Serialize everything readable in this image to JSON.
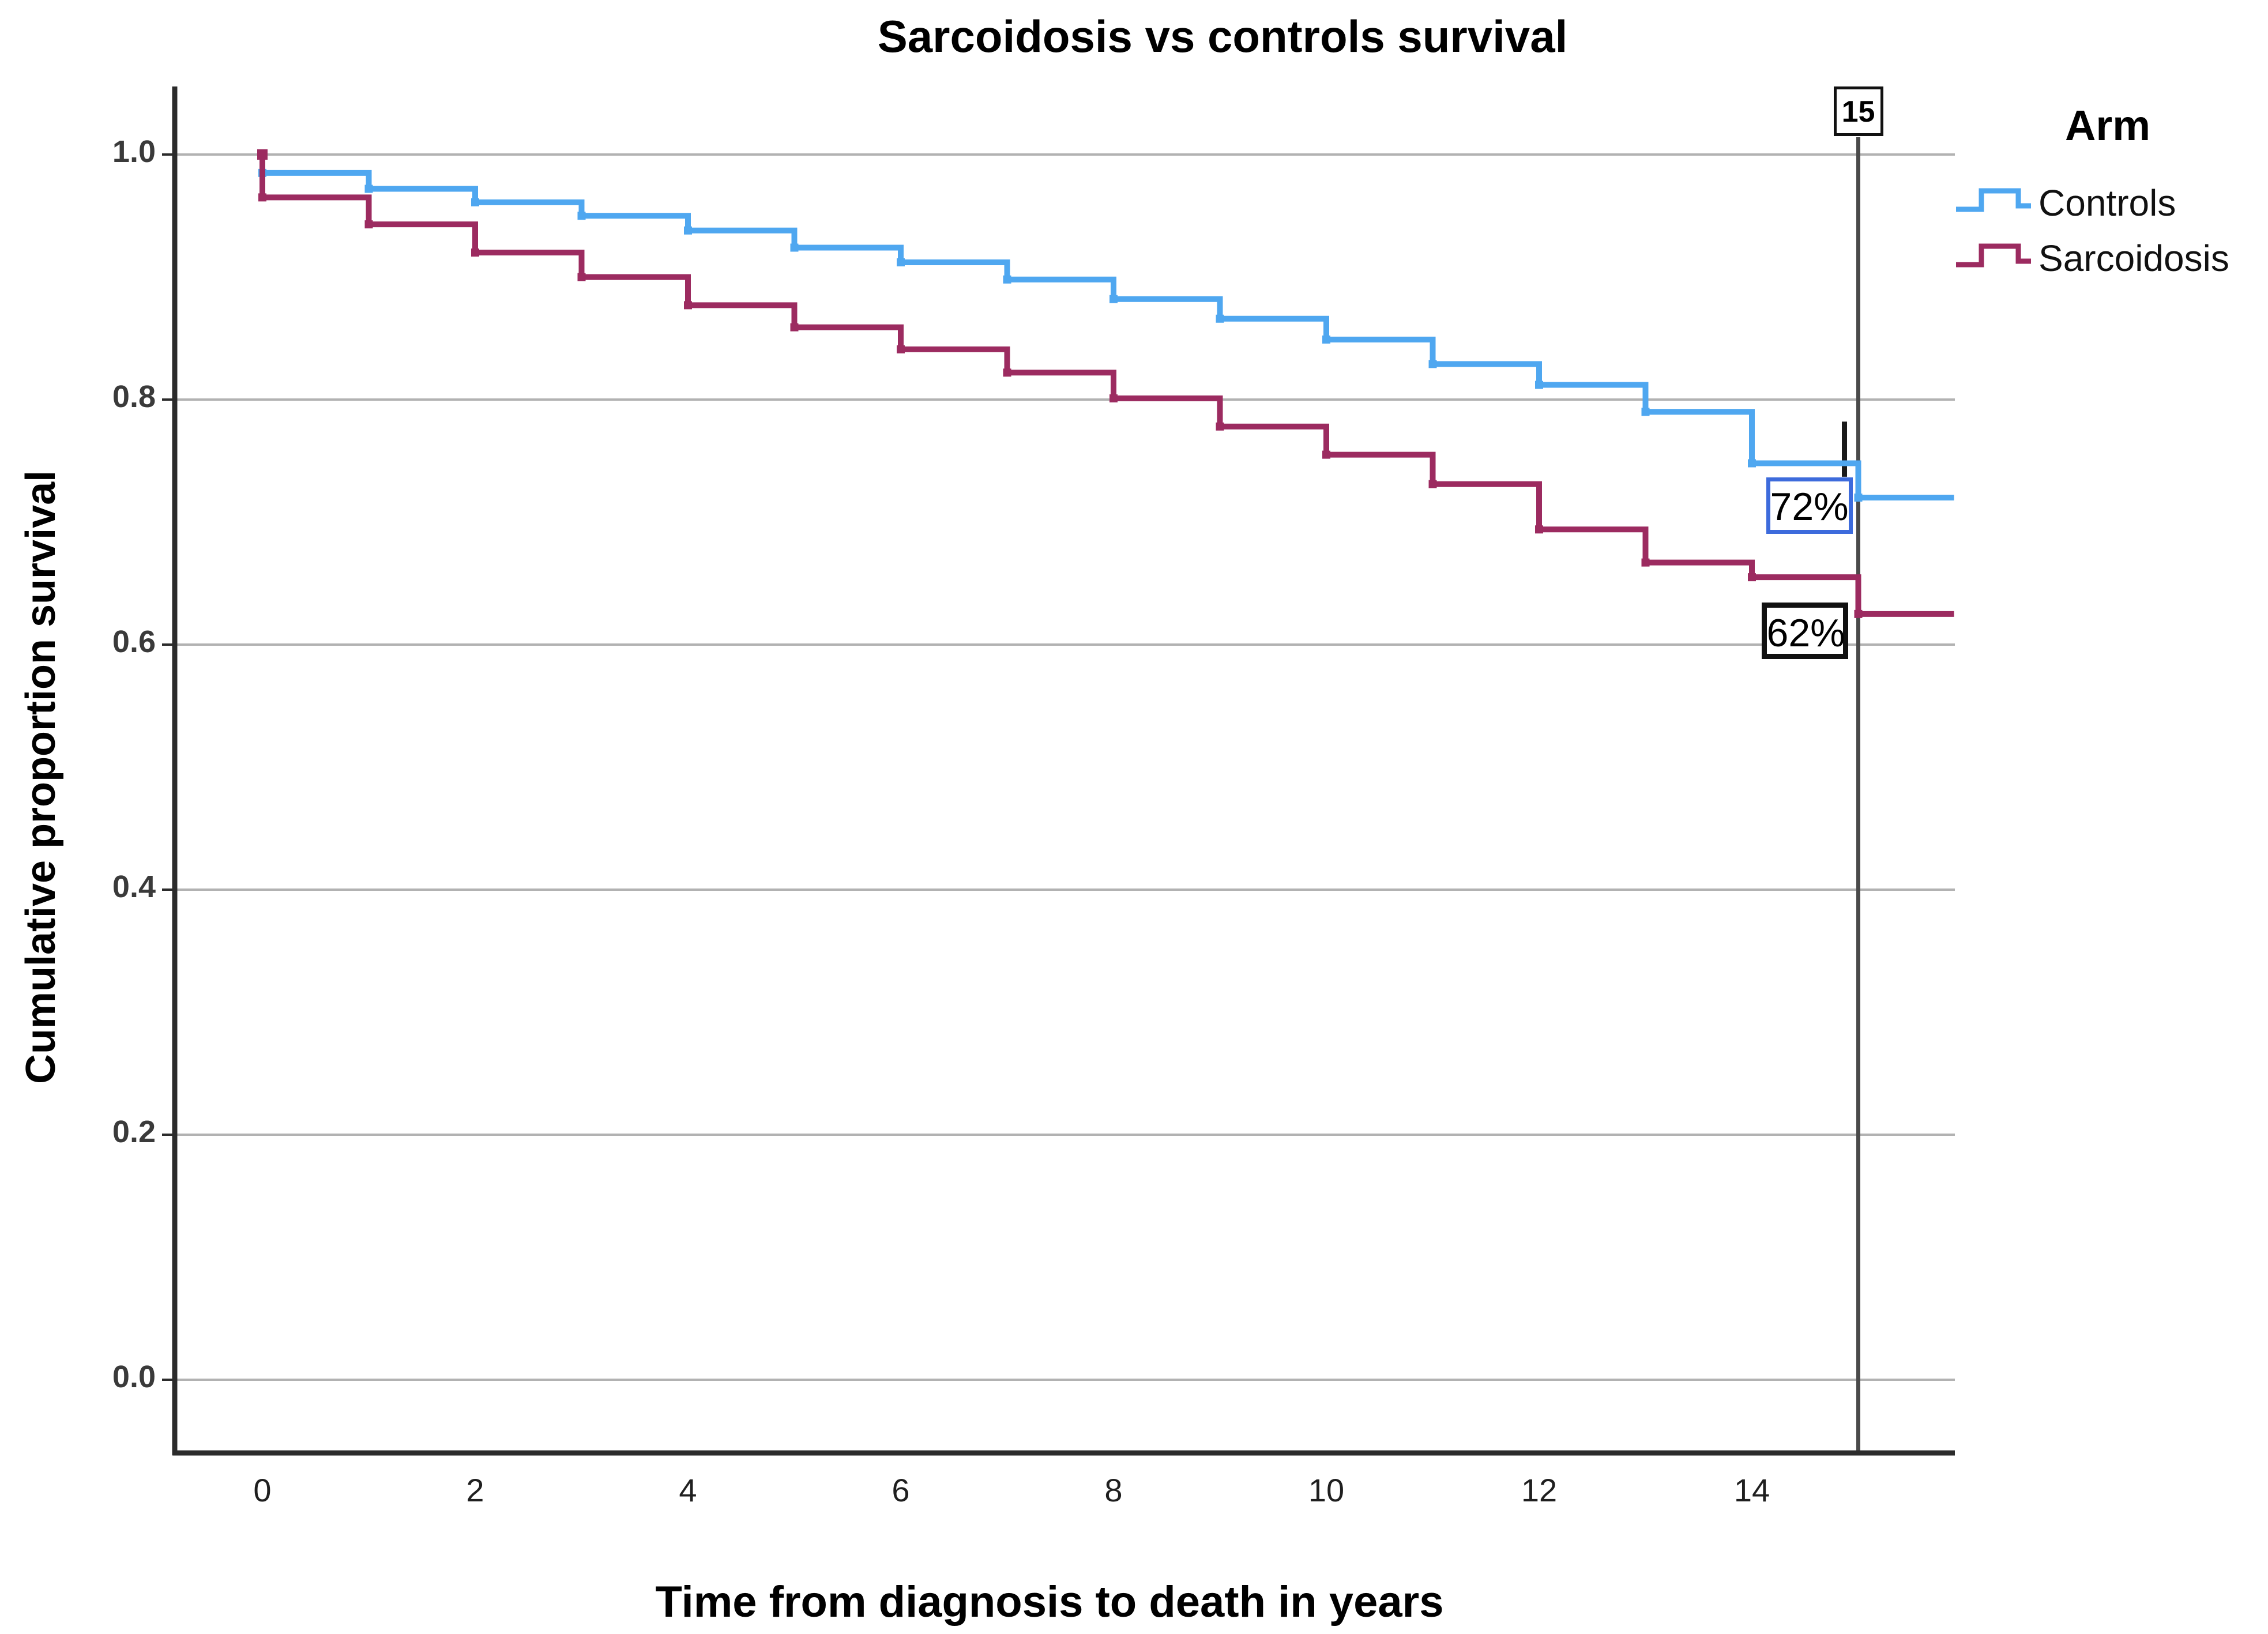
{
  "title": "Sarcoidosis vs controls survival",
  "axes": {
    "x": {
      "title": "Time from diagnosis to death in years",
      "tick_labels": [
        "0",
        "2",
        "4",
        "6",
        "8",
        "10",
        "12",
        "14"
      ],
      "tick_values": [
        0,
        2,
        4,
        6,
        8,
        10,
        12,
        14
      ]
    },
    "y": {
      "title": "Cumulative proportion survival",
      "tick_labels": [
        "1.0",
        "0.8",
        "0.6",
        "0.4",
        "0.2",
        "0.0"
      ],
      "tick_values": [
        1.0,
        0.8,
        0.6,
        0.4,
        0.2,
        0.0
      ]
    }
  },
  "legend": {
    "title": "Arm",
    "items": [
      {
        "label": "Controls",
        "color": "#4FA7F0"
      },
      {
        "label": "Sarcoidosis",
        "color": "#9C2B60"
      }
    ]
  },
  "annotations": {
    "reference_line": {
      "label": "15",
      "year": 15,
      "color": "#4a4a4a"
    },
    "percent_labels": [
      {
        "text": "72%",
        "series": "Controls",
        "border_color": "#3D6BDC"
      },
      {
        "text": "62%",
        "series": "Sarcoidosis",
        "border_color": "#111111"
      }
    ],
    "censor_tick": {
      "year": 14.87,
      "value_from": 0.737,
      "value_to": 0.782,
      "color": "#1a1a1a"
    }
  },
  "colors": {
    "gridline": "#b2b2b2",
    "axis": "#2b2b2b",
    "background": "#ffffff"
  },
  "chart_data": {
    "type": "line",
    "subtype": "step-kaplan-meier",
    "title": "Sarcoidosis vs controls survival",
    "xlabel": "Time from diagnosis to death in years",
    "ylabel": "Cumulative proportion survival",
    "xlim": [
      -0.82,
      15.9
    ],
    "ylim": [
      -0.06,
      1.05
    ],
    "grid": "horizontal-only",
    "legend_position": "right-top",
    "x_step_years": [
      0,
      1,
      2,
      3,
      4,
      5,
      6,
      7,
      8,
      9,
      10,
      11,
      12,
      13,
      14,
      15
    ],
    "series": [
      {
        "name": "Controls",
        "color": "#4FA7F0",
        "start_value": 1.0,
        "levels": [
          0.985,
          0.972,
          0.961,
          0.95,
          0.938,
          0.924,
          0.912,
          0.898,
          0.882,
          0.866,
          0.849,
          0.829,
          0.812,
          0.79,
          0.748,
          0.72
        ],
        "end_year": 15.9,
        "value_at_15_years": 0.72
      },
      {
        "name": "Sarcoidosis",
        "color": "#9C2B60",
        "start_value": 1.0,
        "levels": [
          0.965,
          0.943,
          0.92,
          0.9,
          0.877,
          0.859,
          0.841,
          0.822,
          0.801,
          0.778,
          0.755,
          0.731,
          0.694,
          0.667,
          0.655,
          0.625
        ],
        "end_year": 15.9,
        "value_at_15_years": 0.62
      }
    ]
  }
}
